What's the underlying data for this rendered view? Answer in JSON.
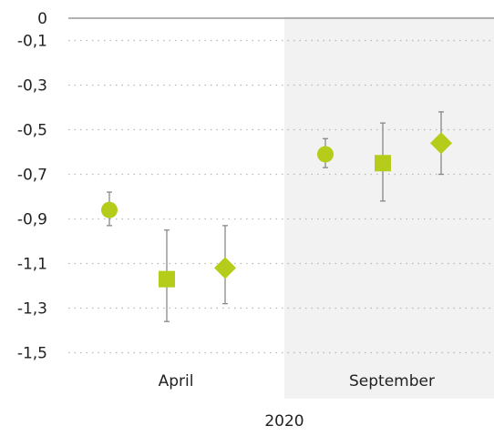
{
  "chart_data": {
    "type": "scatter",
    "subtype": "point-with-error-bars",
    "categories": [
      "April",
      "September"
    ],
    "group_label": "2020",
    "ylim": [
      -1.6,
      0.0
    ],
    "yticks": [
      0,
      -0.1,
      -0.3,
      -0.5,
      -0.7,
      -0.9,
      -1.1,
      -1.3,
      -1.5
    ],
    "ytick_labels": [
      "0",
      "-0,1",
      "-0,3",
      "-0,5",
      "-0,7",
      "-0,9",
      "-1,1",
      "-1,3",
      "-1,5"
    ],
    "grid": "dotted horizontal",
    "highlighted_category": "September",
    "marker_color": "#b5cc1a",
    "errorbar_color": "#888888",
    "shading_color": "#f2f2f2",
    "series": [
      {
        "marker": "circle",
        "values": [
          -0.86,
          -0.61
        ],
        "lower": [
          -0.93,
          -0.67
        ],
        "upper": [
          -0.78,
          -0.54
        ]
      },
      {
        "marker": "square",
        "values": [
          -1.17,
          -0.65
        ],
        "lower": [
          -1.36,
          -0.82
        ],
        "upper": [
          -0.95,
          -0.47
        ]
      },
      {
        "marker": "diamond",
        "values": [
          -1.12,
          -0.56
        ],
        "lower": [
          -1.28,
          -0.7
        ],
        "upper": [
          -0.93,
          -0.42
        ]
      }
    ]
  }
}
